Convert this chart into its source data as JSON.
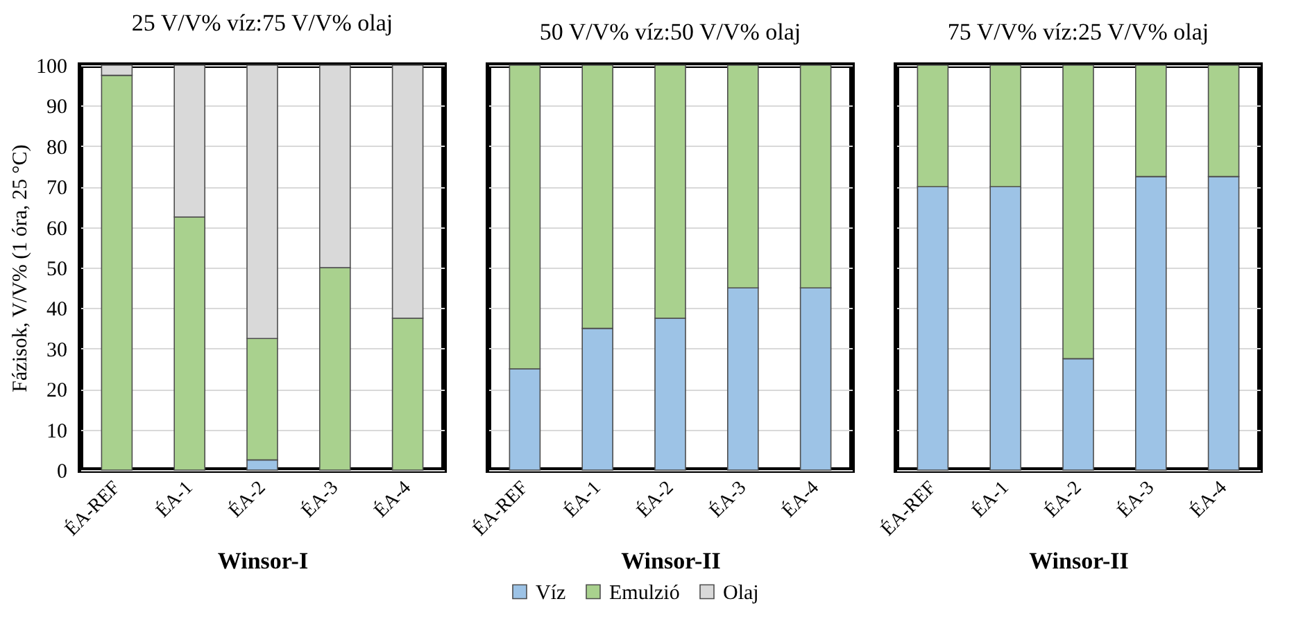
{
  "chart_data": [
    {
      "type": "bar",
      "stacked": true,
      "title": "25 V/V% víz:75 V/V% olaj",
      "xlabel": "Winsor-I",
      "ylabel": "Fázisok, V/V% (1 óra, 25 °C)",
      "categories": [
        "ÉA-REF",
        "ÉA-1",
        "ÉA-2",
        "ÉA-3",
        "ÉA-4"
      ],
      "ylim": [
        0,
        100
      ],
      "yticks": [
        0,
        10,
        20,
        30,
        40,
        50,
        60,
        70,
        80,
        90,
        100
      ],
      "grid": "y",
      "legend": "bottom",
      "series": [
        {
          "name": "Víz",
          "color": "#9dc3e6",
          "values": [
            0,
            0,
            2.5,
            0,
            0
          ]
        },
        {
          "name": "Emulzió",
          "color": "#a9d18e",
          "values": [
            97.5,
            62.5,
            30,
            50,
            37.5
          ]
        },
        {
          "name": "Olaj",
          "color": "#d9d9d9",
          "values": [
            2.5,
            37.5,
            67.5,
            50,
            62.5
          ]
        }
      ]
    },
    {
      "type": "bar",
      "stacked": true,
      "title": "50 V/V% víz:50 V/V% olaj",
      "xlabel": "Winsor-II",
      "categories": [
        "ÉA-REF",
        "ÉA-1",
        "ÉA-2",
        "ÉA-3",
        "ÉA-4"
      ],
      "ylim": [
        0,
        100
      ],
      "yticks": [
        0,
        10,
        20,
        30,
        40,
        50,
        60,
        70,
        80,
        90,
        100
      ],
      "grid": "y",
      "legend": "bottom",
      "tick_labels": "x",
      "series": [
        {
          "name": "Víz",
          "color": "#9dc3e6",
          "values": [
            25,
            35,
            37.5,
            45,
            45
          ]
        },
        {
          "name": "Emulzió",
          "color": "#a9d18e",
          "values": [
            75,
            65,
            62.5,
            55,
            55
          ]
        }
      ]
    },
    {
      "type": "bar",
      "stacked": true,
      "title": "75 V/V% víz:25 V/V% olaj",
      "xlabel": "Winsor-II",
      "categories": [
        "ÉA-REF",
        "ÉA-1",
        "ÉA-2",
        "ÉA-3",
        "ÉA-4"
      ],
      "ylim": [
        0,
        100
      ],
      "yticks": [
        0,
        10,
        20,
        30,
        40,
        50,
        60,
        70,
        80,
        90,
        100
      ],
      "grid": "y",
      "legend": "bottom",
      "tick_labels": "x",
      "series": [
        {
          "name": "Víz",
          "color": "#9dc3e6",
          "values": [
            70,
            70,
            27.5,
            72.5,
            72.5
          ]
        },
        {
          "name": "Emulzió",
          "color": "#a9d18e",
          "values": [
            30,
            30,
            72.5,
            27.5,
            27.5
          ]
        }
      ]
    }
  ]
}
